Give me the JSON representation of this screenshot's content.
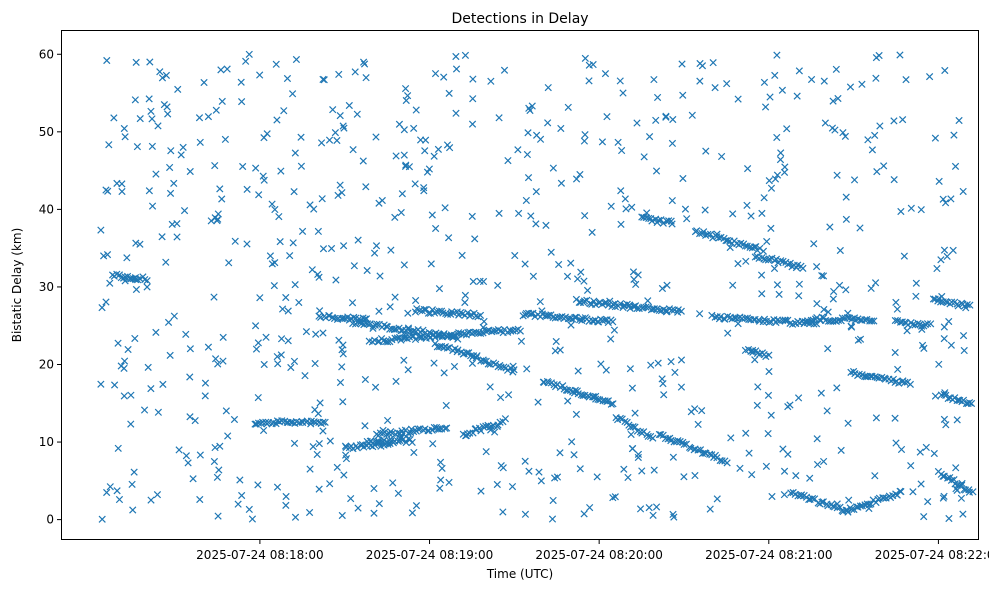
{
  "chart_data": {
    "type": "scatter",
    "title": "Detections in Delay",
    "xlabel": "Time (UTC)",
    "ylabel": "Bistatic Delay (km)",
    "x_unit": "seconds after 2025-07-24 08:16:50 UTC",
    "xlim": [
      0,
      324
    ],
    "ylim": [
      -2.5,
      63
    ],
    "x_ticks": [
      {
        "value": 70,
        "label": "2025-07-24 08:18:00"
      },
      {
        "value": 130,
        "label": "2025-07-24 08:19:00"
      },
      {
        "value": 190,
        "label": "2025-07-24 08:20:00"
      },
      {
        "value": 250,
        "label": "2025-07-24 08:21:00"
      },
      {
        "value": 310,
        "label": "2025-07-24 08:22:00"
      }
    ],
    "y_ticks": [
      {
        "value": 0,
        "label": "0"
      },
      {
        "value": 10,
        "label": "10"
      },
      {
        "value": 20,
        "label": "20"
      },
      {
        "value": 30,
        "label": "30"
      },
      {
        "value": 40,
        "label": "40"
      },
      {
        "value": 50,
        "label": "50"
      },
      {
        "value": 60,
        "label": "60"
      }
    ],
    "grid": false,
    "marker": "x",
    "color": "#1f77b4",
    "tracks": [
      {
        "t0": 68,
        "t1": 93,
        "y0": 12.5,
        "y1": 12.5
      },
      {
        "t0": 91,
        "t1": 108,
        "y0": 26.2,
        "y1": 25.8
      },
      {
        "t0": 103,
        "t1": 140,
        "y0": 25.5,
        "y1": 23.5
      },
      {
        "t0": 110,
        "t1": 162,
        "y0": 23.0,
        "y1": 24.5
      },
      {
        "t0": 100,
        "t1": 116,
        "y0": 9.3,
        "y1": 9.8
      },
      {
        "t0": 111,
        "t1": 136,
        "y0": 11.0,
        "y1": 11.8
      },
      {
        "t0": 108,
        "t1": 124,
        "y0": 10.0,
        "y1": 10.2
      },
      {
        "t0": 125,
        "t1": 148,
        "y0": 27.0,
        "y1": 26.3
      },
      {
        "t0": 132,
        "t1": 147,
        "y0": 22.5,
        "y1": 21.0
      },
      {
        "t0": 148,
        "t1": 160,
        "y0": 20.5,
        "y1": 19.2
      },
      {
        "t0": 142,
        "t1": 156,
        "y0": 11.0,
        "y1": 12.5
      },
      {
        "t0": 163,
        "t1": 195,
        "y0": 26.5,
        "y1": 25.5
      },
      {
        "t0": 182,
        "t1": 219,
        "y0": 28.2,
        "y1": 26.8
      },
      {
        "t0": 205,
        "t1": 216,
        "y0": 38.8,
        "y1": 38.2
      },
      {
        "t0": 170,
        "t1": 195,
        "y0": 17.8,
        "y1": 15.0
      },
      {
        "t0": 196,
        "t1": 209,
        "y0": 13.2,
        "y1": 10.5
      },
      {
        "t0": 211,
        "t1": 235,
        "y0": 11.0,
        "y1": 7.5
      },
      {
        "t0": 224,
        "t1": 247,
        "y0": 37.2,
        "y1": 34.8
      },
      {
        "t0": 245,
        "t1": 262,
        "y0": 34.0,
        "y1": 32.5
      },
      {
        "t0": 230,
        "t1": 267,
        "y0": 26.2,
        "y1": 25.2
      },
      {
        "t0": 264,
        "t1": 287,
        "y0": 25.8,
        "y1": 25.8
      },
      {
        "t0": 242,
        "t1": 250,
        "y0": 22.0,
        "y1": 21.0
      },
      {
        "t0": 279,
        "t1": 300,
        "y0": 19.0,
        "y1": 17.5
      },
      {
        "t0": 295,
        "t1": 307,
        "y0": 25.5,
        "y1": 25.0
      },
      {
        "t0": 308,
        "t1": 321,
        "y0": 28.5,
        "y1": 27.5
      },
      {
        "t0": 311,
        "t1": 322,
        "y0": 16.0,
        "y1": 15.0
      },
      {
        "t0": 258,
        "t1": 278,
        "y0": 3.5,
        "y1": 1.0
      },
      {
        "t0": 278,
        "t1": 297,
        "y0": 1.2,
        "y1": 3.5
      },
      {
        "t0": 310,
        "t1": 322,
        "y0": 6.0,
        "y1": 3.5
      },
      {
        "t0": 18,
        "t1": 30,
        "y0": 31.5,
        "y1": 31.0
      }
    ],
    "clutter_count": 760,
    "clutter_seed": 20250724
  }
}
